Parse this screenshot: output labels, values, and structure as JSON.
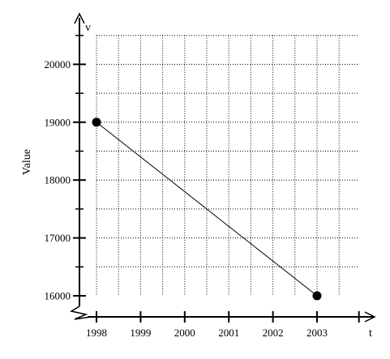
{
  "chart_data": {
    "type": "line",
    "x_axis_letter": "t",
    "y_axis_letter": "v",
    "ylabel": "Value",
    "xlabel": "",
    "x_ticks": [
      1998,
      1999,
      2000,
      2001,
      2002,
      2003
    ],
    "y_ticks": [
      16000,
      17000,
      18000,
      19000,
      20000
    ],
    "xlim": [
      1998,
      2003.95
    ],
    "ylim": [
      16000,
      20500
    ],
    "y_axis_break": true,
    "grid": true,
    "grid_style": "dotted",
    "series": [
      {
        "points": [
          {
            "x": 1998,
            "y": 19000
          },
          {
            "x": 2003,
            "y": 16000
          }
        ]
      }
    ]
  }
}
